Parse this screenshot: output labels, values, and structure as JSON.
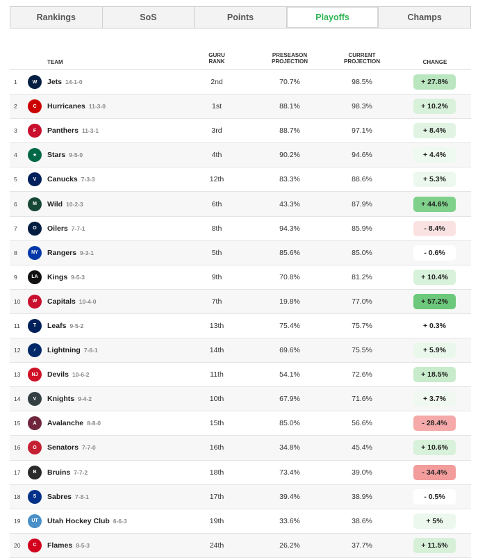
{
  "tabs": [
    {
      "label": "Rankings",
      "active": false
    },
    {
      "label": "SoS",
      "active": false
    },
    {
      "label": "Points",
      "active": false
    },
    {
      "label": "Playoffs",
      "active": true
    },
    {
      "label": "Champs",
      "active": false
    }
  ],
  "headers": {
    "team": "TEAM",
    "guru_rank": [
      "GURU",
      "RANK"
    ],
    "preseason": [
      "PRESEASON",
      "PROJECTION"
    ],
    "current": [
      "CURRENT",
      "PROJECTION"
    ],
    "change": "CHANGE"
  },
  "rows": [
    {
      "rank": "1",
      "team": "Jets",
      "record": "14-1-0",
      "guru": "2nd",
      "pre": "70.7%",
      "cur": "98.5%",
      "change": "+ 27.8%",
      "chg_bg": "#b9e6bf",
      "logo_color": "#041e42",
      "logo_text": "W"
    },
    {
      "rank": "2",
      "team": "Hurricanes",
      "record": "11-3-0",
      "guru": "1st",
      "pre": "88.1%",
      "cur": "98.3%",
      "change": "+ 10.2%",
      "chg_bg": "#d8f1da",
      "logo_color": "#cc0000",
      "logo_text": "C"
    },
    {
      "rank": "3",
      "team": "Panthers",
      "record": "11-3-1",
      "guru": "3rd",
      "pre": "88.7%",
      "cur": "97.1%",
      "change": "+ 8.4%",
      "chg_bg": "#e1f4e3",
      "logo_color": "#c8102e",
      "logo_text": "F"
    },
    {
      "rank": "4",
      "team": "Stars",
      "record": "9-5-0",
      "guru": "4th",
      "pre": "90.2%",
      "cur": "94.6%",
      "change": "+ 4.4%",
      "chg_bg": "#eef9ef",
      "logo_color": "#006847",
      "logo_text": "★"
    },
    {
      "rank": "5",
      "team": "Canucks",
      "record": "7-3-3",
      "guru": "12th",
      "pre": "83.3%",
      "cur": "88.6%",
      "change": "+ 5.3%",
      "chg_bg": "#ecf8ed",
      "logo_color": "#00205b",
      "logo_text": "V"
    },
    {
      "rank": "6",
      "team": "Wild",
      "record": "10-2-3",
      "guru": "6th",
      "pre": "43.3%",
      "cur": "87.9%",
      "change": "+ 44.6%",
      "chg_bg": "#7fd08b",
      "logo_color": "#154734",
      "logo_text": "M"
    },
    {
      "rank": "7",
      "team": "Oilers",
      "record": "7-7-1",
      "guru": "8th",
      "pre": "94.3%",
      "cur": "85.9%",
      "change": "- 8.4%",
      "chg_bg": "#fbe2e2",
      "logo_color": "#041e42",
      "logo_text": "O"
    },
    {
      "rank": "8",
      "team": "Rangers",
      "record": "9-3-1",
      "guru": "5th",
      "pre": "85.6%",
      "cur": "85.0%",
      "change": "- 0.6%",
      "chg_bg": "#ffffff",
      "logo_color": "#0038a8",
      "logo_text": "NY"
    },
    {
      "rank": "9",
      "team": "Kings",
      "record": "9-5-3",
      "guru": "9th",
      "pre": "70.8%",
      "cur": "81.2%",
      "change": "+ 10.4%",
      "chg_bg": "#d8f1da",
      "logo_color": "#111111",
      "logo_text": "LA"
    },
    {
      "rank": "10",
      "team": "Capitals",
      "record": "10-4-0",
      "guru": "7th",
      "pre": "19.8%",
      "cur": "77.0%",
      "change": "+ 57.2%",
      "chg_bg": "#6cc87a",
      "logo_color": "#c8102e",
      "logo_text": "W"
    },
    {
      "rank": "11",
      "team": "Leafs",
      "record": "9-5-2",
      "guru": "13th",
      "pre": "75.4%",
      "cur": "75.7%",
      "change": "+ 0.3%",
      "chg_bg": "#ffffff",
      "logo_color": "#00205b",
      "logo_text": "T"
    },
    {
      "rank": "12",
      "team": "Lightning",
      "record": "7-6-1",
      "guru": "14th",
      "pre": "69.6%",
      "cur": "75.5%",
      "change": "+ 5.9%",
      "chg_bg": "#eaf7eb",
      "logo_color": "#002868",
      "logo_text": "⚡"
    },
    {
      "rank": "13",
      "team": "Devils",
      "record": "10-6-2",
      "guru": "11th",
      "pre": "54.1%",
      "cur": "72.6%",
      "change": "+ 18.5%",
      "chg_bg": "#c8ebcc",
      "logo_color": "#ce1126",
      "logo_text": "NJ"
    },
    {
      "rank": "14",
      "team": "Knights",
      "record": "9-4-2",
      "guru": "10th",
      "pre": "67.9%",
      "cur": "71.6%",
      "change": "+ 3.7%",
      "chg_bg": "#f0f9f1",
      "logo_color": "#333f42",
      "logo_text": "V"
    },
    {
      "rank": "15",
      "team": "Avalanche",
      "record": "8-8-0",
      "guru": "15th",
      "pre": "85.0%",
      "cur": "56.6%",
      "change": "- 28.4%",
      "chg_bg": "#f5a9a9",
      "logo_color": "#6f263d",
      "logo_text": "A"
    },
    {
      "rank": "16",
      "team": "Senators",
      "record": "7-7-0",
      "guru": "16th",
      "pre": "34.8%",
      "cur": "45.4%",
      "change": "+ 10.6%",
      "chg_bg": "#d8f1da",
      "logo_color": "#c52032",
      "logo_text": "O"
    },
    {
      "rank": "17",
      "team": "Bruins",
      "record": "7-7-2",
      "guru": "18th",
      "pre": "73.4%",
      "cur": "39.0%",
      "change": "- 34.4%",
      "chg_bg": "#f39c9c",
      "logo_color": "#2a2a2a",
      "logo_text": "B"
    },
    {
      "rank": "18",
      "team": "Sabres",
      "record": "7-8-1",
      "guru": "17th",
      "pre": "39.4%",
      "cur": "38.9%",
      "change": "- 0.5%",
      "chg_bg": "#ffffff",
      "logo_color": "#003087",
      "logo_text": "S"
    },
    {
      "rank": "19",
      "team": "Utah Hockey Club",
      "record": "6-6-3",
      "guru": "19th",
      "pre": "33.6%",
      "cur": "38.6%",
      "change": "+ 5%",
      "chg_bg": "#ecf8ed",
      "logo_color": "#4a90c8",
      "logo_text": "UT"
    },
    {
      "rank": "20",
      "team": "Flames",
      "record": "8-5-3",
      "guru": "24th",
      "pre": "26.2%",
      "cur": "37.7%",
      "change": "+ 11.5%",
      "chg_bg": "#d6f0d8",
      "logo_color": "#d2001c",
      "logo_text": "C"
    }
  ]
}
